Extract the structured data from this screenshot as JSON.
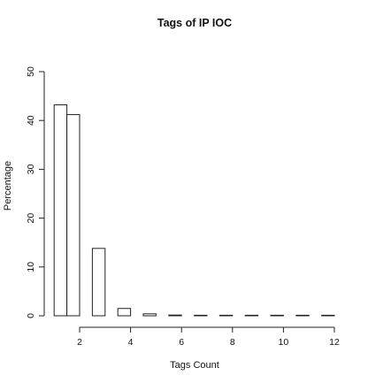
{
  "chart_data": {
    "type": "bar",
    "title": "Tags of IP IOC",
    "xlabel": "Tags Count",
    "ylabel": "Percentage",
    "xlim": [
      0.5,
      12
    ],
    "ylim": [
      0,
      50
    ],
    "x_ticks": [
      2,
      4,
      6,
      8,
      10,
      12
    ],
    "y_ticks": [
      0,
      10,
      20,
      30,
      40,
      50
    ],
    "bin_width": 0.5,
    "bins": [
      {
        "x0": 1.0,
        "x1": 1.5,
        "value": 43.2
      },
      {
        "x0": 1.5,
        "x1": 2.0,
        "value": 41.2
      },
      {
        "x0": 2.5,
        "x1": 3.0,
        "value": 13.8
      },
      {
        "x0": 3.5,
        "x1": 4.0,
        "value": 1.5
      },
      {
        "x0": 4.5,
        "x1": 5.0,
        "value": 0.4
      },
      {
        "x0": 5.5,
        "x1": 6.0,
        "value": 0.15
      },
      {
        "x0": 6.5,
        "x1": 7.0,
        "value": 0.05
      },
      {
        "x0": 7.5,
        "x1": 8.0,
        "value": 0.02
      },
      {
        "x0": 8.5,
        "x1": 9.0,
        "value": 0.01
      },
      {
        "x0": 9.5,
        "x1": 10.0,
        "value": 0.01
      },
      {
        "x0": 10.5,
        "x1": 11.0,
        "value": 0.01
      },
      {
        "x0": 11.5,
        "x1": 12.0,
        "value": 0.01
      }
    ],
    "grid": false,
    "legend": "none"
  }
}
